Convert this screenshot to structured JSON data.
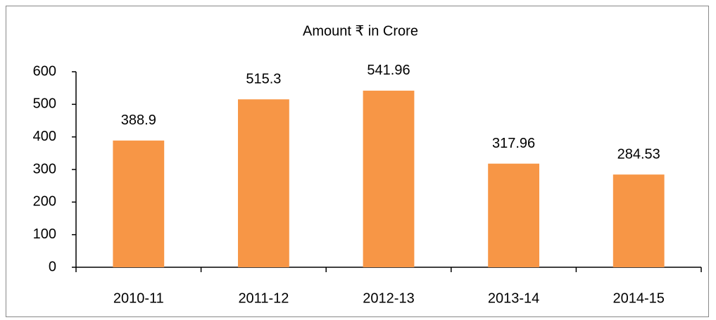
{
  "chart_data": {
    "type": "bar",
    "title": "Amount ₹  in Crore",
    "categories": [
      "2010-11",
      "2011-12",
      "2012-13",
      "2013-14",
      "2014-15"
    ],
    "values": [
      388.9,
      515.3,
      541.96,
      317.96,
      284.53
    ],
    "color": "#f79646",
    "ylim": [
      0,
      600
    ],
    "yticks": [
      0,
      100,
      200,
      300,
      400,
      500,
      600
    ],
    "grid": false
  }
}
